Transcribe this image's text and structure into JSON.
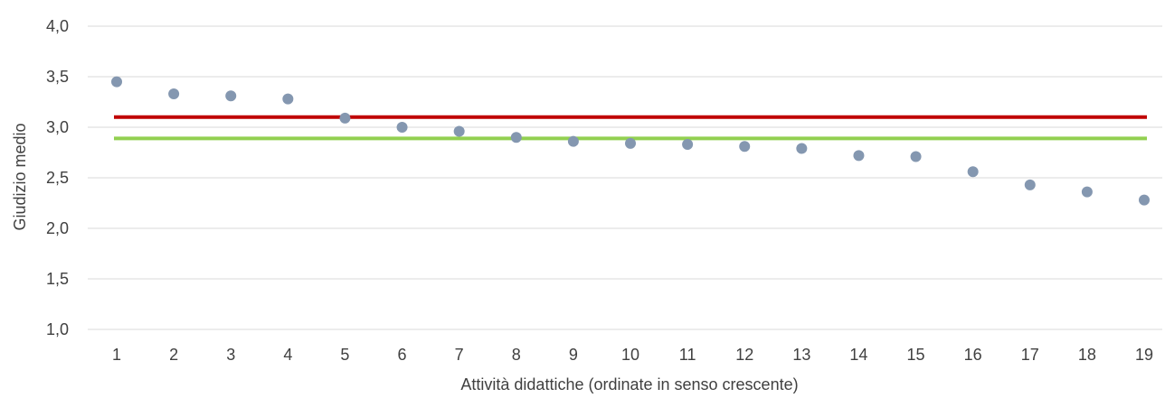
{
  "chart_data": {
    "type": "scatter",
    "xlabel": "Attività didattiche (ordinate in senso crescente)",
    "ylabel": "Giudizio medio",
    "ylim": [
      1.0,
      4.0
    ],
    "xlim": [
      1,
      19
    ],
    "y_ticks": [
      "1,0",
      "1,5",
      "2,0",
      "2,5",
      "3,0",
      "3,5",
      "4,0"
    ],
    "y_tick_values": [
      1.0,
      1.5,
      2.0,
      2.5,
      3.0,
      3.5,
      4.0
    ],
    "x_ticks": [
      "1",
      "2",
      "3",
      "4",
      "5",
      "6",
      "7",
      "8",
      "9",
      "10",
      "11",
      "12",
      "13",
      "14",
      "15",
      "16",
      "17",
      "18",
      "19"
    ],
    "grid": true,
    "series": [
      {
        "x": [
          1,
          2,
          3,
          4,
          5,
          6,
          7,
          8,
          9,
          10,
          11,
          12,
          13,
          14,
          15,
          16,
          17,
          18,
          19
        ],
        "values": [
          3.45,
          3.33,
          3.31,
          3.28,
          3.09,
          3.0,
          2.96,
          2.9,
          2.86,
          2.84,
          2.83,
          2.81,
          2.79,
          2.72,
          2.71,
          2.56,
          2.43,
          2.36,
          2.28
        ],
        "color": "#8497B0"
      }
    ],
    "reference_lines": [
      {
        "value": 3.1,
        "color": "#C00000"
      },
      {
        "value": 2.89,
        "color": "#92D050"
      }
    ]
  }
}
